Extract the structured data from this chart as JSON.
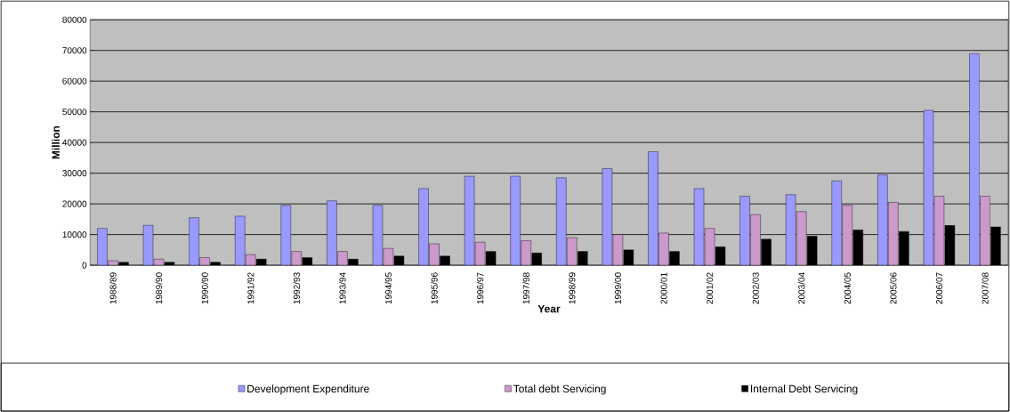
{
  "chart_data": {
    "type": "bar",
    "xlabel": "Year",
    "ylabel": "Million",
    "categories": [
      "1988/89",
      "1989/90",
      "1990/90",
      "1991/92",
      "1992/93",
      "1993/94",
      "1994/95",
      "1995/96",
      "1996/97",
      "1997/98",
      "1998/99",
      "1999/00",
      "2000/01",
      "2001/02",
      "2002/03",
      "2003/04",
      "2004/05",
      "2005/06",
      "2006/07",
      "2007/08"
    ],
    "series": [
      {
        "name": "Development Expenditure",
        "color": "#9999ff",
        "values": [
          12000,
          13000,
          15500,
          16000,
          19500,
          21000,
          19500,
          25000,
          29000,
          29000,
          28500,
          31500,
          37000,
          25000,
          22500,
          23000,
          27500,
          29500,
          50500,
          69000
        ]
      },
      {
        "name": "Total debt Servicing",
        "color": "#cc99cc",
        "values": [
          1500,
          2000,
          2500,
          3500,
          4500,
          4500,
          5500,
          7000,
          7500,
          8000,
          9000,
          10000,
          10500,
          12000,
          16500,
          17500,
          19500,
          20500,
          22500,
          22500
        ]
      },
      {
        "name": "Internal Debt Servicing",
        "color": "#000000",
        "values": [
          1000,
          1000,
          1000,
          2000,
          2500,
          2000,
          3000,
          3000,
          4500,
          4000,
          4500,
          5000,
          4500,
          6000,
          8500,
          9500,
          11500,
          11000,
          13000,
          12500
        ]
      }
    ],
    "ylim": [
      0,
      80000
    ],
    "yticks": [
      0,
      10000,
      20000,
      30000,
      40000,
      50000,
      60000,
      70000,
      80000
    ],
    "grid": "y",
    "legend": "bottom"
  }
}
